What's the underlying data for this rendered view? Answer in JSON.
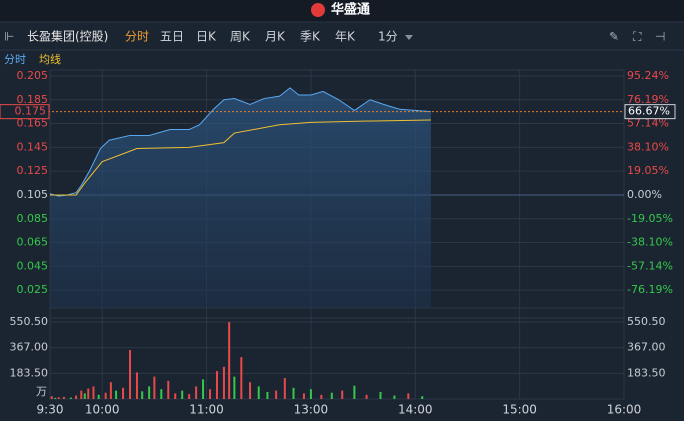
{
  "header": {
    "logo": "华盛通",
    "stock": "长盈集团(控股)",
    "tabs": [
      "分时",
      "五日",
      "日K",
      "周K",
      "月K",
      "季K",
      "年K",
      "1分"
    ],
    "volume_unit": "万"
  },
  "chart_data": [
    {
      "type": "line",
      "xticks": [
        {
          "value": 0,
          "label": "9:30"
        },
        {
          "value": 30,
          "label": "10:00"
        },
        {
          "value": 90,
          "label": "11:00"
        },
        {
          "value": 150,
          "label": "13:00"
        },
        {
          "value": 210,
          "label": "14:00"
        },
        {
          "value": 270,
          "label": "15:00"
        },
        {
          "value": 330,
          "label": "16:00"
        }
      ],
      "xlim": [
        0,
        330
      ],
      "ylim": [
        0.01,
        0.21
      ],
      "yticks": [
        0.205,
        0.185,
        0.165,
        0.145,
        0.125,
        0.105,
        0.085,
        0.065,
        0.045,
        0.025
      ],
      "y2lim": [
        -90.48,
        100
      ],
      "y2ticks": [
        {
          "value": 95.24,
          "label": "95.24%"
        },
        {
          "value": 76.19,
          "label": "76.19%"
        },
        {
          "value": 57.14,
          "label": "57.14%"
        },
        {
          "value": 38.1,
          "label": "38.10%"
        },
        {
          "value": 19.05,
          "label": "19.05%"
        },
        {
          "value": 0,
          "label": "0.00%"
        },
        {
          "value": -19.05,
          "label": "-19.05%"
        },
        {
          "value": -38.1,
          "label": "-38.10%"
        },
        {
          "value": -57.14,
          "label": "-57.14%"
        },
        {
          "value": -76.19,
          "label": "-76.19%"
        }
      ],
      "last_price": 0.175,
      "last_change": {
        "value": 66.67,
        "label": "66.67%"
      },
      "series": [
        {
          "name": "分时",
          "color": "#5aa9f0",
          "x": [
            0,
            5,
            10,
            15,
            18,
            23,
            29,
            34,
            46,
            57,
            69,
            80,
            86,
            94,
            100,
            106,
            115,
            123,
            132,
            138,
            143,
            150,
            157,
            166,
            175,
            184,
            192,
            201,
            219
          ],
          "values": [
            0.106,
            0.104,
            0.105,
            0.107,
            0.113,
            0.126,
            0.144,
            0.151,
            0.155,
            0.155,
            0.16,
            0.16,
            0.164,
            0.177,
            0.185,
            0.186,
            0.181,
            0.186,
            0.188,
            0.195,
            0.189,
            0.189,
            0.192,
            0.185,
            0.176,
            0.185,
            0.181,
            0.177,
            0.175
          ]
        },
        {
          "name": "均线",
          "color": "#f0c030",
          "x": [
            0,
            15,
            20,
            30,
            50,
            80,
            100,
            106,
            132,
            150,
            180,
            219
          ],
          "values": [
            0.105,
            0.105,
            0.115,
            0.133,
            0.144,
            0.145,
            0.149,
            0.157,
            0.164,
            0.166,
            0.167,
            0.168
          ]
        }
      ]
    },
    {
      "type": "bar",
      "xlim": [
        0,
        330
      ],
      "ylim": [
        0,
        550.5
      ],
      "yticks": [
        {
          "value": 550.5,
          "label": "550.50"
        },
        {
          "value": 367,
          "label": "367.00"
        },
        {
          "value": 183.5,
          "label": "183.50"
        }
      ],
      "x": [
        1,
        3,
        5,
        8,
        12,
        15,
        18,
        20,
        22,
        25,
        28,
        32,
        35,
        38,
        42,
        46,
        50,
        53,
        57,
        60,
        64,
        68,
        72,
        76,
        80,
        84,
        88,
        92,
        96,
        100,
        103,
        106,
        110,
        115,
        120,
        125,
        130,
        135,
        140,
        146,
        150,
        156,
        162,
        168,
        175,
        182,
        190,
        198,
        206,
        214
      ],
      "values": [
        20,
        8,
        12,
        15,
        10,
        25,
        60,
        40,
        75,
        90,
        30,
        45,
        120,
        60,
        80,
        350,
        190,
        55,
        90,
        160,
        70,
        130,
        40,
        60,
        35,
        90,
        140,
        70,
        200,
        230,
        550,
        160,
        300,
        120,
        90,
        50,
        60,
        150,
        80,
        40,
        70,
        30,
        45,
        60,
        95,
        30,
        50,
        25,
        40,
        20
      ],
      "colors": [
        "#e84a4a",
        "#34c94a",
        "#e84a4a",
        "#e84a4a",
        "#34c94a",
        "#e84a4a",
        "#e84a4a",
        "#34c94a",
        "#e84a4a",
        "#e84a4a",
        "#34c94a",
        "#e84a4a",
        "#e84a4a",
        "#34c94a",
        "#e84a4a",
        "#e84a4a",
        "#e84a4a",
        "#34c94a",
        "#34c94a",
        "#e84a4a",
        "#34c94a",
        "#e84a4a",
        "#e84a4a",
        "#34c94a",
        "#e84a4a",
        "#e84a4a",
        "#34c94a",
        "#e84a4a",
        "#e84a4a",
        "#e84a4a",
        "#e84a4a",
        "#34c94a",
        "#e84a4a",
        "#e84a4a",
        "#34c94a",
        "#34c94a",
        "#e84a4a",
        "#e84a4a",
        "#34c94a",
        "#e84a4a",
        "#34c94a",
        "#e84a4a",
        "#34c94a",
        "#e84a4a",
        "#34c94a",
        "#e84a4a",
        "#34c94a",
        "#34c94a",
        "#e84a4a",
        "#34c94a"
      ]
    }
  ]
}
